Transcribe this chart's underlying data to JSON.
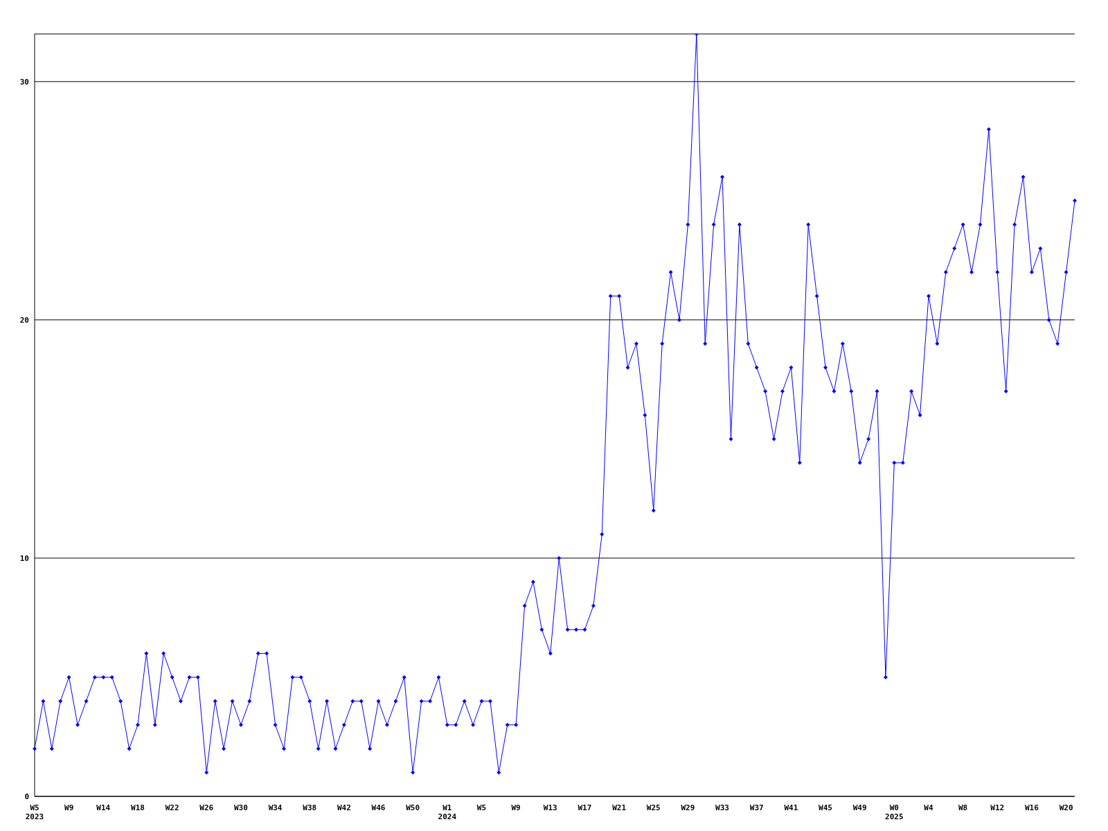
{
  "chart_data": {
    "type": "line",
    "categories": [
      "W5\n2023",
      null,
      null,
      null,
      "W9",
      null,
      null,
      null,
      "W14",
      null,
      null,
      null,
      "W18",
      null,
      null,
      null,
      "W22",
      null,
      null,
      null,
      "W26",
      null,
      null,
      null,
      "W30",
      null,
      null,
      null,
      "W34",
      null,
      null,
      null,
      "W38",
      null,
      null,
      null,
      "W42",
      null,
      null,
      null,
      "W46",
      null,
      null,
      null,
      "W50",
      null,
      null,
      null,
      "W1\n2024",
      null,
      null,
      null,
      "W5",
      null,
      null,
      null,
      "W9",
      null,
      null,
      null,
      "W13",
      null,
      null,
      null,
      "W17",
      null,
      null,
      null,
      "W21",
      null,
      null,
      null,
      "W25",
      null,
      null,
      null,
      "W29",
      null,
      null,
      null,
      "W33",
      null,
      null,
      null,
      "W37",
      null,
      null,
      null,
      "W41",
      null,
      null,
      null,
      "W45",
      null,
      null,
      null,
      "W49",
      null,
      null,
      null,
      "W0\n2025",
      null,
      null,
      null,
      "W4",
      null,
      null,
      null,
      "W8",
      null,
      null,
      null,
      "W12",
      null,
      null,
      null,
      "W16",
      null,
      null,
      null,
      "W20",
      null
    ],
    "series": [
      {
        "color": "#0000ff",
        "values": [
          2,
          4,
          2,
          4,
          5,
          3,
          4,
          5,
          5,
          5,
          4,
          2,
          3,
          6,
          3,
          6,
          5,
          4,
          5,
          5,
          1,
          4,
          2,
          4,
          3,
          4,
          6,
          6,
          3,
          2,
          5,
          5,
          4,
          2,
          4,
          2,
          3,
          4,
          4,
          2,
          4,
          3,
          4,
          5,
          1,
          4,
          4,
          5,
          3,
          3,
          4,
          3,
          4,
          4,
          1,
          3,
          3,
          8,
          9,
          7,
          6,
          10,
          7,
          7,
          7,
          8,
          11,
          21,
          21,
          18,
          19,
          16,
          12,
          19,
          22,
          20,
          24,
          32,
          19,
          24,
          26,
          15,
          24,
          19,
          18,
          17,
          15,
          17,
          18,
          14,
          24,
          21,
          18,
          17,
          19,
          17,
          14,
          15,
          17,
          5,
          14,
          14,
          17,
          16,
          21,
          19,
          22,
          23,
          24,
          22,
          24,
          28,
          22,
          17,
          24,
          26,
          22,
          23,
          20,
          19,
          22,
          25
        ]
      }
    ],
    "ylim": [
      0,
      32
    ],
    "yticks": [
      0,
      10,
      20,
      30
    ],
    "grid": "y",
    "marker": "diamond",
    "line_style": "solid"
  }
}
